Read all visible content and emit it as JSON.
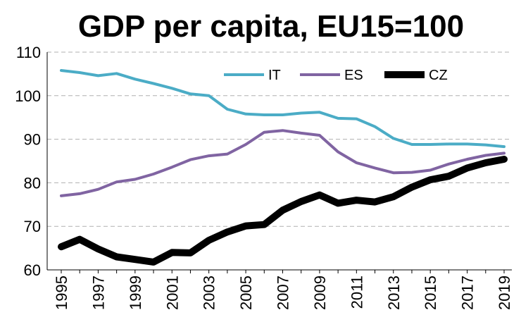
{
  "chart_data": {
    "type": "line",
    "title": "GDP per capita, EU15=100",
    "xlabel": "",
    "ylabel": "",
    "ylim": [
      60,
      110
    ],
    "yticks": [
      60,
      70,
      80,
      90,
      100,
      110
    ],
    "xlim": [
      1995,
      2019
    ],
    "xtick_labels": [
      "1995",
      "1997",
      "1999",
      "2001",
      "2003",
      "2005",
      "2007",
      "2009",
      "2011",
      "2013",
      "2015",
      "2017",
      "2019"
    ],
    "grid": "horizontal dashed",
    "legend": "top-right",
    "x": [
      1995,
      1996,
      1997,
      1998,
      1999,
      2000,
      2001,
      2002,
      2003,
      2004,
      2005,
      2006,
      2007,
      2008,
      2009,
      2010,
      2011,
      2012,
      2013,
      2014,
      2015,
      2016,
      2017,
      2018,
      2019
    ],
    "series": [
      {
        "name": "IT",
        "color": "#4BACC6",
        "line_width": "medium",
        "values": [
          105.8,
          105.3,
          104.6,
          105.1,
          103.8,
          102.8,
          101.7,
          100.4,
          100.0,
          96.9,
          95.8,
          95.6,
          95.6,
          96.0,
          96.2,
          94.8,
          94.7,
          92.9,
          90.2,
          88.8,
          88.8,
          88.9,
          88.9,
          88.7,
          88.3
        ]
      },
      {
        "name": "ES",
        "color": "#8064A2",
        "line_width": "medium",
        "values": [
          77.0,
          77.5,
          78.5,
          80.2,
          80.8,
          82.0,
          83.6,
          85.3,
          86.2,
          86.6,
          88.8,
          91.6,
          92.0,
          91.4,
          90.9,
          87.1,
          84.6,
          83.4,
          82.3,
          82.4,
          82.9,
          84.3,
          85.4,
          86.3,
          86.8
        ]
      },
      {
        "name": "CZ",
        "color": "#000000",
        "line_width": "thick",
        "values": [
          65.3,
          67.0,
          64.8,
          63.0,
          62.4,
          61.8,
          64.0,
          63.9,
          66.8,
          68.7,
          70.1,
          70.4,
          73.7,
          75.7,
          77.2,
          75.3,
          76.0,
          75.6,
          76.8,
          79.0,
          80.7,
          81.5,
          83.4,
          84.6,
          85.4
        ]
      }
    ]
  }
}
